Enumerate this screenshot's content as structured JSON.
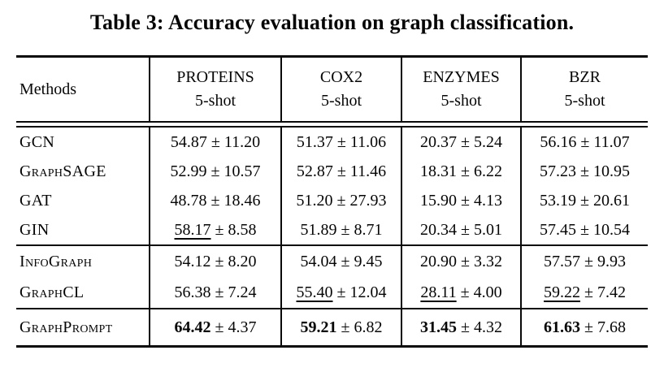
{
  "page": {
    "title": "Table 3: Accuracy evaluation on graph classification."
  },
  "table": {
    "methods_header": "Methods",
    "shot_label": "5-shot",
    "plus_minus": "±",
    "columns": [
      "PROTEINS",
      "COX2",
      "ENZYMES",
      "BZR"
    ],
    "groups": [
      {
        "name": "gnn-baselines",
        "rows": [
          {
            "method": "GCN",
            "cells": [
              {
                "mean": "54.87",
                "std": "11.20"
              },
              {
                "mean": "51.37",
                "std": "11.06"
              },
              {
                "mean": "20.37",
                "std": "5.24"
              },
              {
                "mean": "56.16",
                "std": "11.07"
              }
            ]
          },
          {
            "method": "GraphSAGE",
            "cells": [
              {
                "mean": "52.99",
                "std": "10.57"
              },
              {
                "mean": "52.87",
                "std": "11.46"
              },
              {
                "mean": "18.31",
                "std": "6.22"
              },
              {
                "mean": "57.23",
                "std": "10.95"
              }
            ]
          },
          {
            "method": "GAT",
            "cells": [
              {
                "mean": "48.78",
                "std": "18.46"
              },
              {
                "mean": "51.20",
                "std": "27.93"
              },
              {
                "mean": "15.90",
                "std": "4.13"
              },
              {
                "mean": "53.19",
                "std": "20.61"
              }
            ]
          },
          {
            "method": "GIN",
            "cells": [
              {
                "mean": "58.17",
                "std": "8.58",
                "underline": true
              },
              {
                "mean": "51.89",
                "std": "8.71"
              },
              {
                "mean": "20.34",
                "std": "5.01"
              },
              {
                "mean": "57.45",
                "std": "10.54"
              }
            ]
          }
        ]
      },
      {
        "name": "ssl-baselines",
        "rows": [
          {
            "method": "InfoGraph",
            "cells": [
              {
                "mean": "54.12",
                "std": "8.20"
              },
              {
                "mean": "54.04",
                "std": "9.45"
              },
              {
                "mean": "20.90",
                "std": "3.32"
              },
              {
                "mean": "57.57",
                "std": "9.93"
              }
            ]
          },
          {
            "method": "GraphCL",
            "cells": [
              {
                "mean": "56.38",
                "std": "7.24"
              },
              {
                "mean": "55.40",
                "std": "12.04",
                "underline": true
              },
              {
                "mean": "28.11",
                "std": "4.00",
                "underline": true
              },
              {
                "mean": "59.22",
                "std": "7.42",
                "underline": true
              }
            ]
          }
        ]
      },
      {
        "name": "ours",
        "rows": [
          {
            "method": "GraphPrompt",
            "cells": [
              {
                "mean": "64.42",
                "std": "4.37",
                "bold": true
              },
              {
                "mean": "59.21",
                "std": "6.82",
                "bold": true
              },
              {
                "mean": "31.45",
                "std": "4.32",
                "bold": true
              },
              {
                "mean": "61.63",
                "std": "7.68",
                "bold": true
              }
            ]
          }
        ]
      }
    ]
  }
}
